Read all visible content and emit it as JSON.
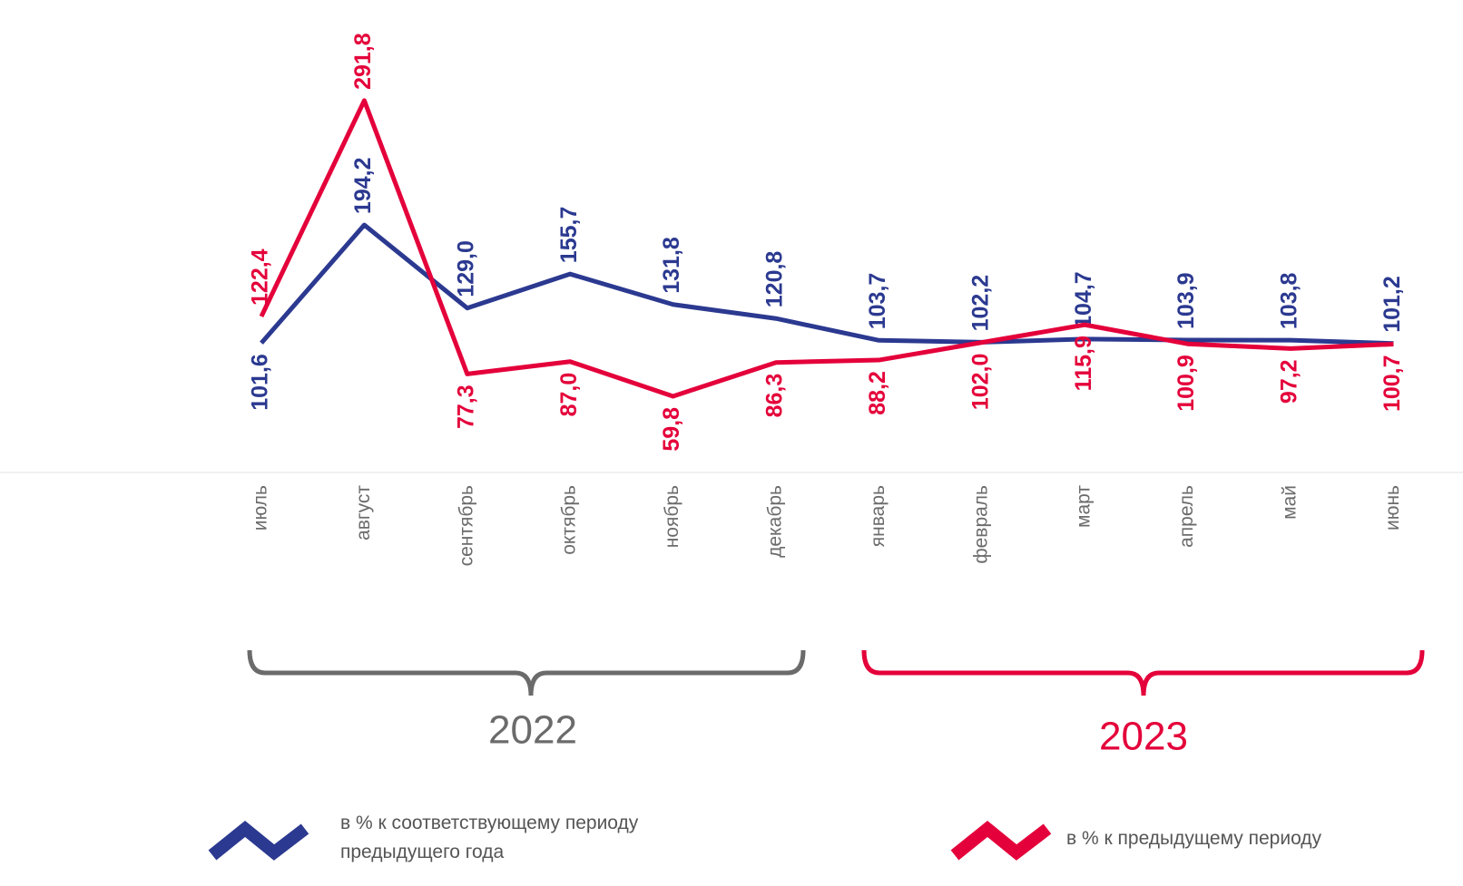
{
  "chart_data": {
    "type": "line",
    "categories": [
      "июль",
      "август",
      "сентябрь",
      "октябрь",
      "ноябрь",
      "декабрь",
      "январь",
      "февраль",
      "март",
      "апрель",
      "май",
      "июнь"
    ],
    "series": [
      {
        "name": "в % к соответствующему периоду предыдущего года",
        "color": "#2b3990",
        "values": [
          101.6,
          194.2,
          129.0,
          155.7,
          131.8,
          120.8,
          103.7,
          102.2,
          104.7,
          103.9,
          103.8,
          101.2
        ],
        "value_labels": [
          "101,6",
          "194,2",
          "129,0",
          "155,7",
          "131,8",
          "120,8",
          "103,7",
          "102,2",
          "104,7",
          "103,9",
          "103,8",
          "101,2"
        ]
      },
      {
        "name": "в % к предыдущему периоду",
        "color": "#e4003a",
        "values": [
          122.4,
          291.8,
          77.3,
          87.0,
          59.8,
          86.3,
          88.2,
          102.0,
          115.9,
          100.9,
          97.2,
          100.7
        ],
        "value_labels": [
          "122,4",
          "291,8",
          "77,3",
          "87,0",
          "59,8",
          "86,3",
          "88,2",
          "102,0",
          "115,9",
          "100,9",
          "97,2",
          "100,7"
        ]
      }
    ],
    "ylim": [
      0,
      370
    ],
    "period_labels": [
      "2022",
      "2023"
    ]
  }
}
